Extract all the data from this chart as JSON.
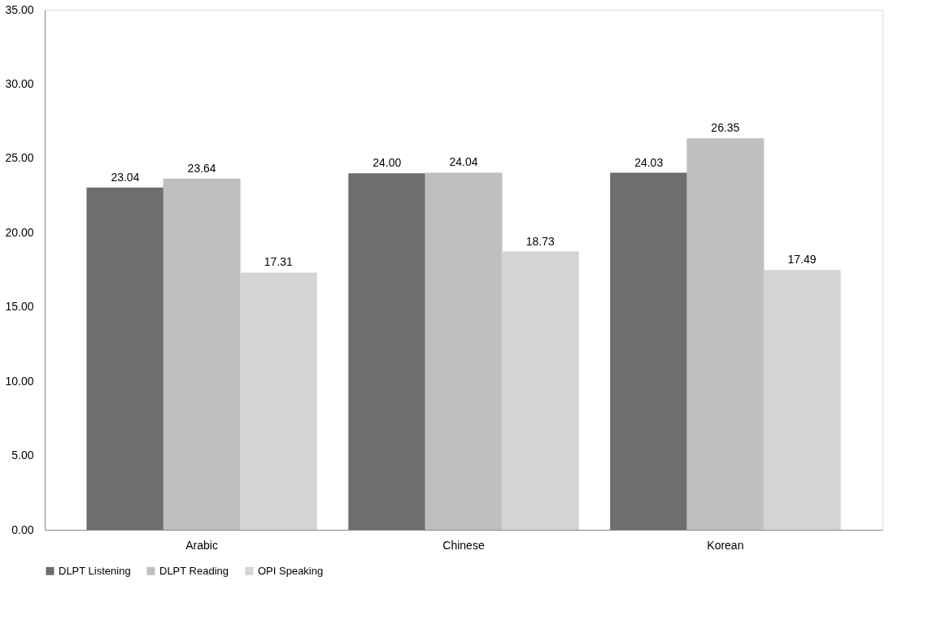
{
  "chart_data": {
    "type": "bar",
    "categories": [
      "Arabic",
      "Chinese",
      "Korean"
    ],
    "series": [
      {
        "name": "DLPT Listening",
        "color": "#6e6e6e",
        "values": [
          23.04,
          24.0,
          24.03
        ],
        "value_labels": [
          "23.04",
          "24.00",
          "24.03"
        ]
      },
      {
        "name": "DLPT Reading",
        "color": "#bfbfbf",
        "values": [
          23.64,
          24.04,
          26.35
        ],
        "value_labels": [
          "23.64",
          "24.04",
          "26.35"
        ]
      },
      {
        "name": "OPI Speaking",
        "color": "#d4d4d4",
        "values": [
          17.31,
          18.73,
          17.49
        ],
        "value_labels": [
          "17.31",
          "18.73",
          "17.49"
        ]
      }
    ],
    "ylim": [
      0,
      35
    ],
    "yticks": [
      {
        "value": 0,
        "label": "0.00"
      },
      {
        "value": 5,
        "label": "5.00"
      },
      {
        "value": 10,
        "label": "10.00"
      },
      {
        "value": 15,
        "label": "15.00"
      },
      {
        "value": 20,
        "label": "20.00"
      },
      {
        "value": 25,
        "label": "25.00"
      },
      {
        "value": 30,
        "label": "30.00"
      },
      {
        "value": 35,
        "label": "35.00"
      }
    ],
    "grid": false,
    "legend": "bottom"
  }
}
